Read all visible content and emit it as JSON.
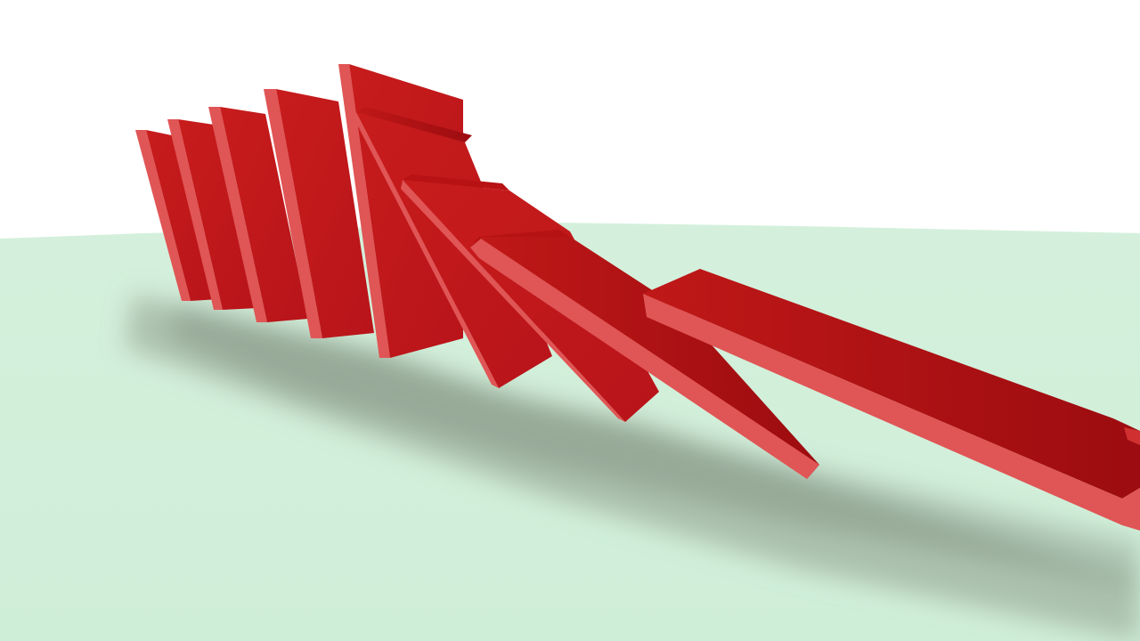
{
  "scene": {
    "subject": "falling-dominoes",
    "domino_count": 10,
    "colors": {
      "sky": "#ffffff",
      "floor": "#d1efd9",
      "floor_far": "#d4f0dc",
      "shadow": "#9aa896",
      "domino_face": "#c41a1a",
      "domino_face_dark": "#a20d10",
      "domino_top": "#d64444",
      "domino_edge": "#e05555"
    }
  }
}
